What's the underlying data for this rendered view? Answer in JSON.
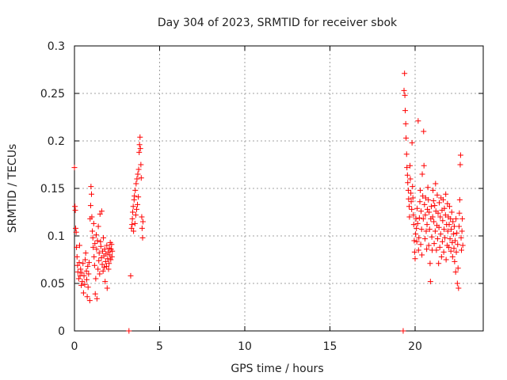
{
  "chart_data": {
    "type": "scatter",
    "title": "Day 304 of 2023, SRMTID for receiver sbok",
    "xlabel": "GPS time / hours",
    "ylabel": "SRMTID / TECUs",
    "xlim": [
      0,
      24
    ],
    "ylim": [
      0,
      0.3
    ],
    "grid": true,
    "marker": "+",
    "color": "#ff0000",
    "x_ticks": [
      0,
      5,
      10,
      15,
      20
    ],
    "x_tick_labels": [
      "0",
      "5",
      "10",
      "15",
      "20"
    ],
    "y_ticks": [
      0,
      0.05,
      0.1,
      0.15,
      0.2,
      0.25,
      0.3
    ],
    "y_tick_labels": [
      "0",
      "0.05",
      "0.1",
      "0.15",
      "0.2",
      "0.25",
      "0.3"
    ],
    "series": [
      {
        "name": "SRMTID",
        "points": [
          [
            0.0,
            0.172
          ],
          [
            0.03,
            0.131
          ],
          [
            0.05,
            0.127
          ],
          [
            0.07,
            0.108
          ],
          [
            0.1,
            0.104
          ],
          [
            0.12,
            0.088
          ],
          [
            0.15,
            0.078
          ],
          [
            0.18,
            0.069
          ],
          [
            0.2,
            0.062
          ],
          [
            0.25,
            0.055
          ],
          [
            0.28,
            0.072
          ],
          [
            0.3,
            0.09
          ],
          [
            0.33,
            0.058
          ],
          [
            0.36,
            0.065
          ],
          [
            0.4,
            0.048
          ],
          [
            0.43,
            0.061
          ],
          [
            0.46,
            0.052
          ],
          [
            0.5,
            0.071
          ],
          [
            0.53,
            0.04
          ],
          [
            0.56,
            0.058
          ],
          [
            0.6,
            0.049
          ],
          [
            0.63,
            0.075
          ],
          [
            0.66,
            0.082
          ],
          [
            0.7,
            0.063
          ],
          [
            0.72,
            0.054
          ],
          [
            0.75,
            0.036
          ],
          [
            0.78,
            0.068
          ],
          [
            0.8,
            0.046
          ],
          [
            0.83,
            0.06
          ],
          [
            0.86,
            0.072
          ],
          [
            0.9,
            0.032
          ],
          [
            0.92,
            0.118
          ],
          [
            0.95,
            0.132
          ],
          [
            0.97,
            0.152
          ],
          [
            1.0,
            0.144
          ],
          [
            1.02,
            0.12
          ],
          [
            1.05,
            0.105
          ],
          [
            1.08,
            0.098
          ],
          [
            1.1,
            0.088
          ],
          [
            1.13,
            0.113
          ],
          [
            1.15,
            0.078
          ],
          [
            1.18,
            0.069
          ],
          [
            1.2,
            0.092
          ],
          [
            1.22,
            0.039
          ],
          [
            1.25,
            0.055
          ],
          [
            1.28,
            0.101
          ],
          [
            1.3,
            0.086
          ],
          [
            1.32,
            0.034
          ],
          [
            1.35,
            0.095
          ],
          [
            1.38,
            0.065
          ],
          [
            1.4,
            0.11
          ],
          [
            1.43,
            0.074
          ],
          [
            1.45,
            0.082
          ],
          [
            1.48,
            0.06
          ],
          [
            1.5,
            0.123
          ],
          [
            1.53,
            0.094
          ],
          [
            1.55,
            0.089
          ],
          [
            1.58,
            0.077
          ],
          [
            1.6,
            0.126
          ],
          [
            1.63,
            0.07
          ],
          [
            1.65,
            0.084
          ],
          [
            1.68,
            0.063
          ],
          [
            1.7,
            0.098
          ],
          [
            1.73,
            0.079
          ],
          [
            1.75,
            0.067
          ],
          [
            1.78,
            0.086
          ],
          [
            1.8,
            0.052
          ],
          [
            1.83,
            0.073
          ],
          [
            1.85,
            0.081
          ],
          [
            1.88,
            0.068
          ],
          [
            1.9,
            0.09
          ],
          [
            1.92,
            0.045
          ],
          [
            1.95,
            0.076
          ],
          [
            1.98,
            0.083
          ],
          [
            2.0,
            0.065
          ],
          [
            2.03,
            0.071
          ],
          [
            2.05,
            0.087
          ],
          [
            2.08,
            0.08
          ],
          [
            2.1,
            0.093
          ],
          [
            2.13,
            0.075
          ],
          [
            2.15,
            0.086
          ],
          [
            2.18,
            0.091
          ],
          [
            2.2,
            0.078
          ],
          [
            2.22,
            0.084
          ],
          [
            3.2,
            0.0
          ],
          [
            3.3,
            0.058
          ],
          [
            3.35,
            0.108
          ],
          [
            3.38,
            0.112
          ],
          [
            3.4,
            0.118
          ],
          [
            3.42,
            0.125
          ],
          [
            3.45,
            0.131
          ],
          [
            3.47,
            0.105
          ],
          [
            3.5,
            0.138
          ],
          [
            3.52,
            0.142
          ],
          [
            3.55,
            0.113
          ],
          [
            3.57,
            0.148
          ],
          [
            3.6,
            0.122
          ],
          [
            3.62,
            0.155
          ],
          [
            3.65,
            0.128
          ],
          [
            3.67,
            0.16
          ],
          [
            3.7,
            0.133
          ],
          [
            3.72,
            0.165
          ],
          [
            3.75,
            0.141
          ],
          [
            3.77,
            0.17
          ],
          [
            3.8,
            0.188
          ],
          [
            3.82,
            0.196
          ],
          [
            3.85,
            0.204
          ],
          [
            3.87,
            0.192
          ],
          [
            3.9,
            0.175
          ],
          [
            3.92,
            0.161
          ],
          [
            3.95,
            0.12
          ],
          [
            3.97,
            0.108
          ],
          [
            4.0,
            0.098
          ],
          [
            4.02,
            0.115
          ],
          [
            19.3,
            0.0
          ],
          [
            19.35,
            0.253
          ],
          [
            19.38,
            0.271
          ],
          [
            19.4,
            0.248
          ],
          [
            19.42,
            0.232
          ],
          [
            19.45,
            0.218
          ],
          [
            19.47,
            0.203
          ],
          [
            19.5,
            0.186
          ],
          [
            19.52,
            0.172
          ],
          [
            19.55,
            0.164
          ],
          [
            19.57,
            0.156
          ],
          [
            19.6,
            0.148
          ],
          [
            19.62,
            0.139
          ],
          [
            19.65,
            0.131
          ],
          [
            19.67,
            0.12
          ],
          [
            19.7,
            0.174
          ],
          [
            19.72,
            0.16
          ],
          [
            19.75,
            0.145
          ],
          [
            19.77,
            0.136
          ],
          [
            19.8,
            0.128
          ],
          [
            19.82,
            0.198
          ],
          [
            19.85,
            0.152
          ],
          [
            19.87,
            0.14
          ],
          [
            19.9,
            0.122
          ],
          [
            19.92,
            0.112
          ],
          [
            19.95,
            0.095
          ],
          [
            19.97,
            0.083
          ],
          [
            20.0,
            0.076
          ],
          [
            20.03,
            0.102
          ],
          [
            20.05,
            0.118
          ],
          [
            20.08,
            0.108
          ],
          [
            20.1,
            0.094
          ],
          [
            20.12,
            0.129
          ],
          [
            20.15,
            0.113
          ],
          [
            20.18,
            0.221
          ],
          [
            20.2,
            0.085
          ],
          [
            20.22,
            0.098
          ],
          [
            20.25,
            0.119
          ],
          [
            20.28,
            0.136
          ],
          [
            20.3,
            0.148
          ],
          [
            20.33,
            0.091
          ],
          [
            20.35,
            0.126
          ],
          [
            20.38,
            0.107
          ],
          [
            20.4,
            0.08
          ],
          [
            20.42,
            0.165
          ],
          [
            20.45,
            0.142
          ],
          [
            20.48,
            0.118
          ],
          [
            20.5,
            0.21
          ],
          [
            20.52,
            0.174
          ],
          [
            20.55,
            0.133
          ],
          [
            20.58,
            0.097
          ],
          [
            20.6,
            0.122
          ],
          [
            20.62,
            0.14
          ],
          [
            20.65,
            0.105
          ],
          [
            20.68,
            0.086
          ],
          [
            20.7,
            0.112
          ],
          [
            20.72,
            0.128
          ],
          [
            20.75,
            0.151
          ],
          [
            20.78,
            0.138
          ],
          [
            20.8,
            0.09
          ],
          [
            20.82,
            0.125
          ],
          [
            20.85,
            0.107
          ],
          [
            20.88,
            0.071
          ],
          [
            20.9,
            0.052
          ],
          [
            20.92,
            0.118
          ],
          [
            20.95,
            0.131
          ],
          [
            20.98,
            0.099
          ],
          [
            21.0,
            0.085
          ],
          [
            21.03,
            0.12
          ],
          [
            21.05,
            0.148
          ],
          [
            21.08,
            0.137
          ],
          [
            21.1,
            0.115
          ],
          [
            21.12,
            0.092
          ],
          [
            21.15,
            0.132
          ],
          [
            21.18,
            0.105
          ],
          [
            21.2,
            0.155
          ],
          [
            21.22,
            0.126
          ],
          [
            21.25,
            0.085
          ],
          [
            21.28,
            0.111
          ],
          [
            21.3,
            0.143
          ],
          [
            21.32,
            0.097
          ],
          [
            21.35,
            0.124
          ],
          [
            21.38,
            0.071
          ],
          [
            21.4,
            0.109
          ],
          [
            21.42,
            0.135
          ],
          [
            21.45,
            0.088
          ],
          [
            21.48,
            0.12
          ],
          [
            21.5,
            0.102
          ],
          [
            21.52,
            0.14
          ],
          [
            21.55,
            0.078
          ],
          [
            21.58,
            0.127
          ],
          [
            21.6,
            0.094
          ],
          [
            21.62,
            0.116
          ],
          [
            21.65,
            0.138
          ],
          [
            21.68,
            0.083
          ],
          [
            21.7,
            0.107
          ],
          [
            21.72,
            0.129
          ],
          [
            21.75,
            0.098
          ],
          [
            21.78,
            0.122
          ],
          [
            21.8,
            0.144
          ],
          [
            21.82,
            0.075
          ],
          [
            21.85,
            0.112
          ],
          [
            21.88,
            0.09
          ],
          [
            21.9,
            0.134
          ],
          [
            21.92,
            0.105
          ],
          [
            21.95,
            0.12
          ],
          [
            21.98,
            0.088
          ],
          [
            22.0,
            0.112
          ],
          [
            22.02,
            0.131
          ],
          [
            22.05,
            0.097
          ],
          [
            22.08,
            0.118
          ],
          [
            22.1,
            0.084
          ],
          [
            22.12,
            0.107
          ],
          [
            22.15,
            0.125
          ],
          [
            22.18,
            0.093
          ],
          [
            22.2,
            0.078
          ],
          [
            22.22,
            0.115
          ],
          [
            22.25,
            0.102
          ],
          [
            22.28,
            0.087
          ],
          [
            22.3,
            0.11
          ],
          [
            22.32,
            0.073
          ],
          [
            22.35,
            0.095
          ],
          [
            22.38,
            0.062
          ],
          [
            22.4,
            0.118
          ],
          [
            22.42,
            0.083
          ],
          [
            22.45,
            0.103
          ],
          [
            22.48,
            0.05
          ],
          [
            22.5,
            0.091
          ],
          [
            22.52,
            0.066
          ],
          [
            22.55,
            0.045
          ],
          [
            22.58,
            0.11
          ],
          [
            22.6,
            0.124
          ],
          [
            22.62,
            0.138
          ],
          [
            22.65,
            0.175
          ],
          [
            22.67,
            0.185
          ],
          [
            22.7,
            0.098
          ],
          [
            22.72,
            0.085
          ],
          [
            22.75,
            0.105
          ],
          [
            22.77,
            0.118
          ],
          [
            22.8,
            0.09
          ]
        ]
      }
    ]
  }
}
